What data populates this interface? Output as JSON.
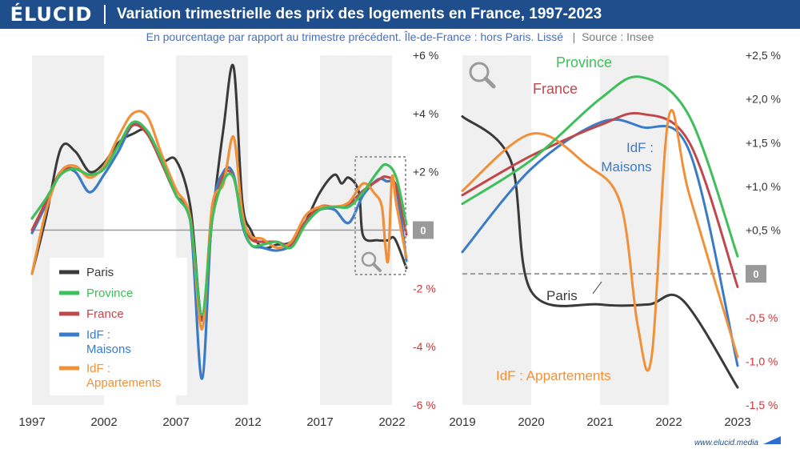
{
  "header": {
    "logo": "ÉLUCID",
    "title": "Variation trimestrielle des prix des logements en France, 1997-2023",
    "subtitle": "En pourcentage par rapport au trimestre précédent. Île-de-France : hors Paris. Lissé",
    "source_sep": "|",
    "source": "Source : Insee"
  },
  "footer": {
    "url": "www.elucid.media"
  },
  "colors": {
    "Paris": "#3a3a3a",
    "Province": "#3fbf5b",
    "France": "#c0474a",
    "IdF : Maisons": "#3a7bc8",
    "IdF : Appartements": "#f0913a",
    "brand": "#1f4e8c"
  },
  "chart_data": [
    {
      "type": "line",
      "xlabels": [
        "1997",
        "2002",
        "2007",
        "2012",
        "2017",
        "2022"
      ],
      "yticks": [
        "+6 %",
        "+4 %",
        "+2 %",
        "0",
        "-2 %",
        "-4 %",
        "-6 %"
      ],
      "ylim": [
        -6,
        6
      ],
      "xlim": [
        1997,
        2023
      ],
      "legend": {
        "placement": "bottom-left",
        "entries": [
          "Paris",
          "Province",
          "France",
          "IdF : Maisons",
          "IdF : Appartements"
        ]
      },
      "zoom": "search-icon",
      "series": [
        {
          "name": "Paris",
          "points": [
            [
              1997,
              -1.5
            ],
            [
              1998,
              0.5
            ],
            [
              1999,
              2.8
            ],
            [
              2000,
              2.7
            ],
            [
              2001,
              2.0
            ],
            [
              2002,
              2.3
            ],
            [
              2003,
              3.0
            ],
            [
              2004,
              3.3
            ],
            [
              2005,
              3.4
            ],
            [
              2006,
              2.4
            ],
            [
              2007,
              2.4
            ],
            [
              2008,
              0.8
            ],
            [
              2008.8,
              -3.0
            ],
            [
              2009.5,
              0.3
            ],
            [
              2010.3,
              3.5
            ],
            [
              2011,
              5.6
            ],
            [
              2011.6,
              1.0
            ],
            [
              2012.2,
              0.0
            ],
            [
              2013,
              -0.6
            ],
            [
              2014,
              -0.5
            ],
            [
              2015,
              -0.4
            ],
            [
              2016,
              0.3
            ],
            [
              2017,
              1.3
            ],
            [
              2018,
              1.9
            ],
            [
              2018.5,
              1.6
            ],
            [
              2019,
              1.8
            ],
            [
              2019.7,
              1.3
            ],
            [
              2020,
              -0.2
            ],
            [
              2021,
              -0.35
            ],
            [
              2021.7,
              -0.35
            ],
            [
              2022.2,
              -0.3
            ],
            [
              2023,
              -1.3
            ]
          ]
        },
        {
          "name": "Province",
          "points": [
            [
              1997,
              0.4
            ],
            [
              1998,
              1.1
            ],
            [
              1999,
              1.9
            ],
            [
              2000,
              2.1
            ],
            [
              2001,
              1.9
            ],
            [
              2002,
              2.1
            ],
            [
              2003,
              2.9
            ],
            [
              2004,
              3.7
            ],
            [
              2005,
              3.4
            ],
            [
              2006,
              2.4
            ],
            [
              2007,
              1.2
            ],
            [
              2008,
              0.3
            ],
            [
              2008.8,
              -2.9
            ],
            [
              2009.5,
              0.3
            ],
            [
              2010.3,
              1.7
            ],
            [
              2011,
              1.8
            ],
            [
              2011.6,
              0.3
            ],
            [
              2012.2,
              -0.5
            ],
            [
              2013,
              -0.5
            ],
            [
              2014,
              -0.4
            ],
            [
              2015,
              -0.6
            ],
            [
              2016,
              0.2
            ],
            [
              2017,
              0.7
            ],
            [
              2018,
              0.8
            ],
            [
              2019,
              0.8
            ],
            [
              2020,
              1.3
            ],
            [
              2021,
              2.0
            ],
            [
              2021.6,
              2.25
            ],
            [
              2022.3,
              1.8
            ],
            [
              2023,
              0.2
            ]
          ]
        },
        {
          "name": "France",
          "points": [
            [
              1997,
              0.0
            ],
            [
              1998,
              1.0
            ],
            [
              1999,
              2.0
            ],
            [
              2000,
              2.1
            ],
            [
              2001,
              1.9
            ],
            [
              2002,
              2.1
            ],
            [
              2003,
              2.9
            ],
            [
              2004,
              3.6
            ],
            [
              2005,
              3.3
            ],
            [
              2006,
              2.3
            ],
            [
              2007,
              1.2
            ],
            [
              2008,
              0.4
            ],
            [
              2008.8,
              -3.1
            ],
            [
              2009.5,
              0.3
            ],
            [
              2010.3,
              1.9
            ],
            [
              2011,
              1.8
            ],
            [
              2011.6,
              0.4
            ],
            [
              2012.2,
              -0.3
            ],
            [
              2013,
              -0.4
            ],
            [
              2014,
              -0.4
            ],
            [
              2015,
              -0.5
            ],
            [
              2016,
              0.3
            ],
            [
              2017,
              0.8
            ],
            [
              2018,
              0.8
            ],
            [
              2019,
              0.9
            ],
            [
              2020,
              1.35
            ],
            [
              2021,
              1.7
            ],
            [
              2021.6,
              1.83
            ],
            [
              2022.3,
              1.5
            ],
            [
              2023,
              -0.15
            ]
          ]
        },
        {
          "name": "IdF : Maisons",
          "points": [
            [
              1997,
              -0.1
            ],
            [
              1998,
              0.9
            ],
            [
              1999,
              2.0
            ],
            [
              2000,
              2.0
            ],
            [
              2001,
              1.3
            ],
            [
              2002,
              1.9
            ],
            [
              2003,
              2.7
            ],
            [
              2004,
              3.6
            ],
            [
              2005,
              3.4
            ],
            [
              2006,
              2.4
            ],
            [
              2007,
              1.2
            ],
            [
              2008,
              0.3
            ],
            [
              2008.8,
              -5.1
            ],
            [
              2009.5,
              0.5
            ],
            [
              2010.3,
              2.0
            ],
            [
              2011,
              1.9
            ],
            [
              2011.6,
              0.2
            ],
            [
              2012.2,
              -0.5
            ],
            [
              2013,
              -0.6
            ],
            [
              2014,
              -0.7
            ],
            [
              2015,
              -0.5
            ],
            [
              2016,
              0.3
            ],
            [
              2017,
              0.7
            ],
            [
              2018,
              0.7
            ],
            [
              2019,
              0.25
            ],
            [
              2020,
              1.2
            ],
            [
              2021,
              1.73
            ],
            [
              2021.6,
              1.68
            ],
            [
              2022.3,
              1.4
            ],
            [
              2023,
              -1.05
            ]
          ]
        },
        {
          "name": "IdF : Appartements",
          "points": [
            [
              1997,
              -1.5
            ],
            [
              1998,
              0.7
            ],
            [
              1999,
              2.0
            ],
            [
              2000,
              2.2
            ],
            [
              2001,
              1.8
            ],
            [
              2002,
              2.2
            ],
            [
              2003,
              3.2
            ],
            [
              2004,
              4.0
            ],
            [
              2005,
              3.9
            ],
            [
              2006,
              2.6
            ],
            [
              2007,
              1.4
            ],
            [
              2008,
              0.4
            ],
            [
              2008.8,
              -3.4
            ],
            [
              2009.5,
              0.8
            ],
            [
              2010.3,
              1.6
            ],
            [
              2011,
              3.2
            ],
            [
              2011.6,
              0.6
            ],
            [
              2012.2,
              -0.2
            ],
            [
              2013,
              -0.3
            ],
            [
              2014,
              -0.6
            ],
            [
              2015,
              -0.4
            ],
            [
              2016,
              0.5
            ],
            [
              2017,
              0.8
            ],
            [
              2018,
              0.8
            ],
            [
              2019,
              0.95
            ],
            [
              2020,
              1.6
            ],
            [
              2020.8,
              1.25
            ],
            [
              2021.3,
              0.8
            ],
            [
              2021.55,
              -0.6
            ],
            [
              2021.75,
              -0.95
            ],
            [
              2022,
              1.8
            ],
            [
              2022.3,
              0.9
            ],
            [
              2023,
              -0.95
            ]
          ]
        }
      ]
    },
    {
      "type": "line",
      "xlabels": [
        "2019",
        "2020",
        "2021",
        "2022",
        "2023"
      ],
      "yticks": [
        "+2,5 %",
        "+2,0 %",
        "+1,5 %",
        "+1,0 %",
        "+0,5 %",
        "0",
        "-0,5 %",
        "-1,0 %",
        "-1,5 %"
      ],
      "ylim": [
        -1.5,
        2.5
      ],
      "xlim": [
        2019,
        2023
      ],
      "annotations": [
        "Province",
        "France",
        "IdF : Maisons",
        "Paris",
        "IdF : Appartements"
      ],
      "series_ref": "same as panel 1, zoomed on 2019-2023"
    }
  ]
}
